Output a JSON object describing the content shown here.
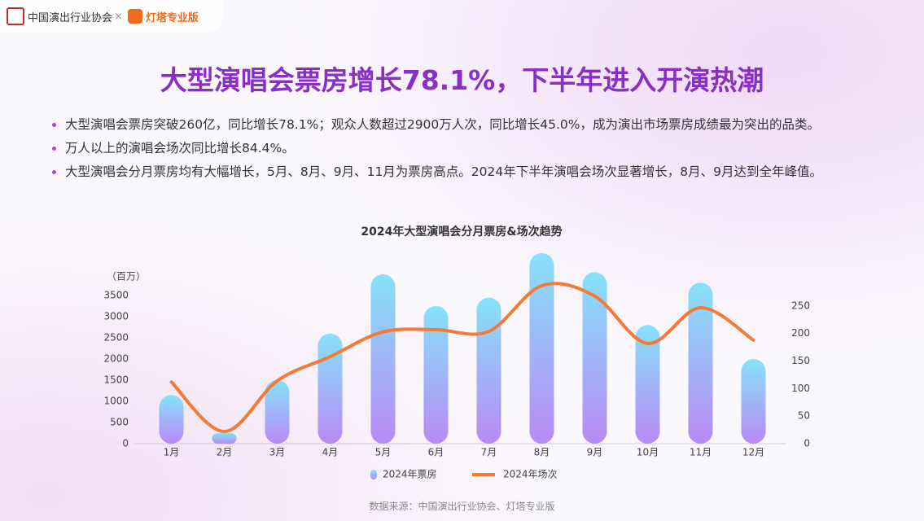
{
  "header": {
    "logo_text": "中国演出行业协会",
    "separator": "×",
    "partner": "灯塔专业版"
  },
  "title": "大型演唱会票房增长78.1%，下半年进入开演热潮",
  "bullets": [
    "大型演唱会票房突破260亿，同比增长78.1%；观众人数超过2900万人次，同比增长45.0%，成为演出市场票房成绩最为突出的品类。",
    "万人以上的演唱会场次同比增长84.4%。",
    "大型演唱会分月票房均有大幅增长，5月、8月、9月、11月为票房高点。2024年下半年演唱会场次显著增长，8月、9月达到全年峰值。"
  ],
  "source": "数据来源：中国演出行业协会、灯塔专业版",
  "chart_data": {
    "type": "combo",
    "title": "2024年大型演唱会分月票房&场次趋势",
    "y_label": "（百万）",
    "categories": [
      "1月",
      "2月",
      "3月",
      "4月",
      "5月",
      "6月",
      "7月",
      "8月",
      "9月",
      "10月",
      "11月",
      "12月"
    ],
    "series": [
      {
        "name": "2024年票房",
        "type": "bar",
        "color": "#86dcf8",
        "values": [
          1150,
          250,
          1500,
          2600,
          4000,
          3250,
          3450,
          4500,
          4050,
          2800,
          3800,
          2000
        ]
      },
      {
        "name": "2024年场次",
        "type": "line",
        "axis": "y2",
        "color": "#f47a36",
        "values": [
          112,
          22,
          114,
          158,
          203,
          207,
          204,
          287,
          268,
          182,
          247,
          188
        ]
      }
    ],
    "ylim": [
      0,
      4500
    ],
    "yticks": [
      0,
      500,
      1000,
      1500,
      2000,
      2500,
      3000,
      3500
    ],
    "y2lim": [
      0,
      346
    ],
    "y2ticks": [
      0,
      50,
      100,
      150,
      200,
      250
    ],
    "legend": "bottom"
  }
}
